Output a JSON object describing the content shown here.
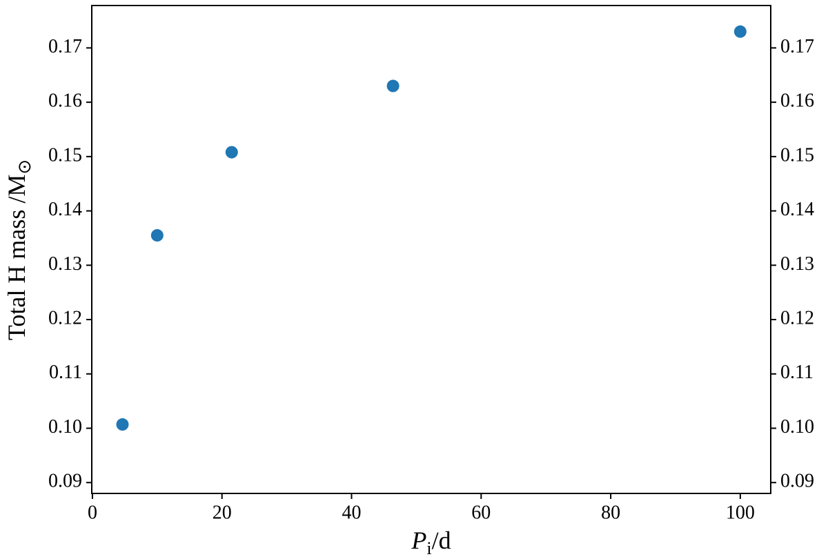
{
  "chart_data": {
    "type": "scatter",
    "xlabel": [
      "P",
      "i",
      "/d"
    ],
    "ylabel": [
      "Total H mass /M",
      "⊙"
    ],
    "x": [
      4.64,
      10,
      21.5,
      46.4,
      100
    ],
    "series": [
      {
        "color": "#1f77b4",
        "values": [
          0.1007,
          0.1355,
          0.1508,
          0.163,
          0.173
        ]
      }
    ],
    "xlim": [
      -0.1,
      104.7
    ],
    "ylim": [
      0.088,
      0.1778
    ],
    "xticks": [
      0,
      20,
      40,
      60,
      80,
      100
    ],
    "yticks": [
      0.09,
      {
        "value": 0.1,
        "label": "0.10"
      },
      0.11,
      0.12,
      0.13,
      0.14,
      0.15,
      0.16,
      0.17
    ]
  }
}
